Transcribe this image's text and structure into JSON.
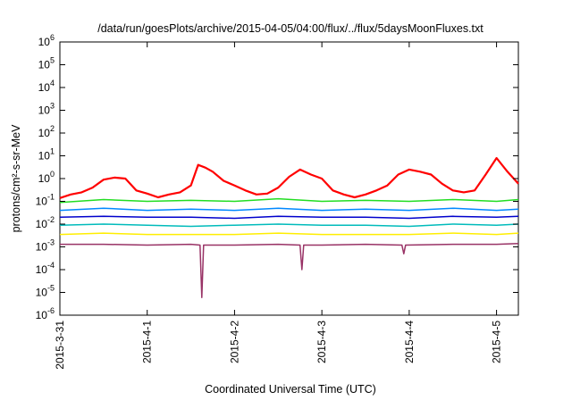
{
  "chart_data": {
    "type": "line",
    "title": "/data/run/goesPlots/archive/2015-04-05/04:00/flux/../flux/5daysMoonFluxes.txt",
    "xlabel": "Coordinated Universal Time (UTC)",
    "ylabel": "protons/cm²-s-sr-MeV",
    "yscale": "log",
    "ylim": [
      1e-06,
      1000000.0
    ],
    "xlim": [
      "2015-03-31",
      "2015-04-05 06:00"
    ],
    "x_ticks": [
      "2015-3-31",
      "2015-4-1",
      "2015-4-2",
      "2015-4-3",
      "2015-4-4",
      "2015-4-5"
    ],
    "y_ticks": [
      {
        "base": "10",
        "exp": "-6",
        "value": 1e-06
      },
      {
        "base": "10",
        "exp": "-5",
        "value": 1e-05
      },
      {
        "base": "10",
        "exp": "-4",
        "value": 0.0001
      },
      {
        "base": "10",
        "exp": "-3",
        "value": 0.001
      },
      {
        "base": "10",
        "exp": "-2",
        "value": 0.01
      },
      {
        "base": "10",
        "exp": "-1",
        "value": 0.1
      },
      {
        "base": "10",
        "exp": "0",
        "value": 1
      },
      {
        "base": "10",
        "exp": "1",
        "value": 10
      },
      {
        "base": "10",
        "exp": "2",
        "value": 100
      },
      {
        "base": "10",
        "exp": "3",
        "value": 1000
      },
      {
        "base": "10",
        "exp": "4",
        "value": 10000
      },
      {
        "base": "10",
        "exp": "5",
        "value": 100000
      },
      {
        "base": "10",
        "exp": "6",
        "value": 1000000
      }
    ],
    "grid": false,
    "legend": "none",
    "series": [
      {
        "color": "#ff0000",
        "width": 2.2,
        "x": [
          "2015-03-31 00:00",
          "2015-03-31 03:00",
          "2015-03-31 06:00",
          "2015-03-31 09:00",
          "2015-03-31 12:00",
          "2015-03-31 15:00",
          "2015-03-31 18:00",
          "2015-03-31 21:00",
          "2015-04-01 00:00",
          "2015-04-01 03:00",
          "2015-04-01 06:00",
          "2015-04-01 09:00",
          "2015-04-01 12:00",
          "2015-04-01 14:00",
          "2015-04-01 16:00",
          "2015-04-01 18:00",
          "2015-04-01 21:00",
          "2015-04-02 00:00",
          "2015-04-02 03:00",
          "2015-04-02 06:00",
          "2015-04-02 09:00",
          "2015-04-02 12:00",
          "2015-04-02 15:00",
          "2015-04-02 18:00",
          "2015-04-02 21:00",
          "2015-04-03 00:00",
          "2015-04-03 03:00",
          "2015-04-03 06:00",
          "2015-04-03 09:00",
          "2015-04-03 12:00",
          "2015-04-03 15:00",
          "2015-04-03 18:00",
          "2015-04-03 21:00",
          "2015-04-04 00:00",
          "2015-04-04 03:00",
          "2015-04-04 06:00",
          "2015-04-04 09:00",
          "2015-04-04 12:00",
          "2015-04-04 15:00",
          "2015-04-04 18:00",
          "2015-04-04 21:00",
          "2015-04-05 00:00",
          "2015-04-05 03:00",
          "2015-04-05 06:00"
        ],
        "y": [
          0.14,
          0.2,
          0.25,
          0.4,
          0.9,
          1.1,
          1.0,
          0.3,
          0.22,
          0.15,
          0.2,
          0.25,
          0.5,
          4,
          3,
          2,
          0.8,
          0.5,
          0.3,
          0.2,
          0.22,
          0.4,
          1.2,
          2.5,
          1.5,
          1.0,
          0.3,
          0.2,
          0.15,
          0.2,
          0.3,
          0.5,
          1.5,
          2.5,
          2.0,
          1.5,
          0.6,
          0.3,
          0.25,
          0.3,
          1.5,
          8,
          2.0,
          0.6
        ]
      },
      {
        "color": "#22dd22",
        "width": 1.5,
        "x": [
          "2015-03-31 00:00",
          "2015-03-31 12:00",
          "2015-04-01 00:00",
          "2015-04-01 12:00",
          "2015-04-02 00:00",
          "2015-04-02 12:00",
          "2015-04-03 00:00",
          "2015-04-03 12:00",
          "2015-04-04 00:00",
          "2015-04-04 12:00",
          "2015-04-05 00:00",
          "2015-04-05 06:00"
        ],
        "y": [
          0.09,
          0.12,
          0.1,
          0.11,
          0.1,
          0.13,
          0.1,
          0.11,
          0.1,
          0.12,
          0.1,
          0.12
        ]
      },
      {
        "color": "#0088ff",
        "width": 1.5,
        "x": [
          "2015-03-31 00:00",
          "2015-03-31 12:00",
          "2015-04-01 00:00",
          "2015-04-01 12:00",
          "2015-04-02 00:00",
          "2015-04-02 12:00",
          "2015-04-03 00:00",
          "2015-04-03 12:00",
          "2015-04-04 00:00",
          "2015-04-04 12:00",
          "2015-04-05 00:00",
          "2015-04-05 06:00"
        ],
        "y": [
          0.04,
          0.05,
          0.04,
          0.045,
          0.04,
          0.05,
          0.04,
          0.045,
          0.04,
          0.05,
          0.04,
          0.045
        ]
      },
      {
        "color": "#0000cc",
        "width": 1.5,
        "x": [
          "2015-03-31 00:00",
          "2015-03-31 12:00",
          "2015-04-01 00:00",
          "2015-04-01 12:00",
          "2015-04-02 00:00",
          "2015-04-02 12:00",
          "2015-04-03 00:00",
          "2015-04-03 12:00",
          "2015-04-04 00:00",
          "2015-04-04 12:00",
          "2015-04-05 00:00",
          "2015-04-05 06:00"
        ],
        "y": [
          0.02,
          0.022,
          0.02,
          0.02,
          0.018,
          0.022,
          0.02,
          0.02,
          0.018,
          0.022,
          0.02,
          0.022
        ]
      },
      {
        "color": "#00bbbb",
        "width": 1.5,
        "x": [
          "2015-03-31 00:00",
          "2015-03-31 12:00",
          "2015-04-01 00:00",
          "2015-04-01 12:00",
          "2015-04-02 00:00",
          "2015-04-02 12:00",
          "2015-04-03 00:00",
          "2015-04-03 12:00",
          "2015-04-04 00:00",
          "2015-04-04 12:00",
          "2015-04-05 00:00",
          "2015-04-05 06:00"
        ],
        "y": [
          0.009,
          0.01,
          0.009,
          0.008,
          0.009,
          0.01,
          0.009,
          0.009,
          0.008,
          0.01,
          0.009,
          0.01
        ]
      },
      {
        "color": "#ffee00",
        "width": 1.5,
        "x": [
          "2015-03-31 00:00",
          "2015-03-31 12:00",
          "2015-04-01 00:00",
          "2015-04-01 12:00",
          "2015-04-02 00:00",
          "2015-04-02 12:00",
          "2015-04-03 00:00",
          "2015-04-03 12:00",
          "2015-04-04 00:00",
          "2015-04-04 12:00",
          "2015-04-05 00:00",
          "2015-04-05 06:00"
        ],
        "y": [
          0.0035,
          0.004,
          0.0035,
          0.0035,
          0.0035,
          0.004,
          0.0035,
          0.0035,
          0.0035,
          0.004,
          0.0035,
          0.004
        ]
      },
      {
        "color": "#993366",
        "width": 1.5,
        "x": [
          "2015-03-31 00:00",
          "2015-03-31 12:00",
          "2015-04-01 00:00",
          "2015-04-01 12:00",
          "2015-04-01 14:30",
          "2015-04-01 15:00",
          "2015-04-01 15:30",
          "2015-04-02 00:00",
          "2015-04-02 12:00",
          "2015-04-02 18:00",
          "2015-04-02 18:30",
          "2015-04-02 19:00",
          "2015-04-03 00:00",
          "2015-04-03 12:00",
          "2015-04-03 22:00",
          "2015-04-03 22:30",
          "2015-04-03 23:00",
          "2015-04-04 12:00",
          "2015-04-05 00:00",
          "2015-04-05 06:00"
        ],
        "y": [
          0.0013,
          0.0013,
          0.0012,
          0.0013,
          0.0012,
          6e-06,
          0.0012,
          0.0012,
          0.0013,
          0.0012,
          0.0001,
          0.0012,
          0.0012,
          0.0013,
          0.0012,
          0.0005,
          0.0012,
          0.0013,
          0.0013,
          0.0014
        ]
      }
    ]
  }
}
